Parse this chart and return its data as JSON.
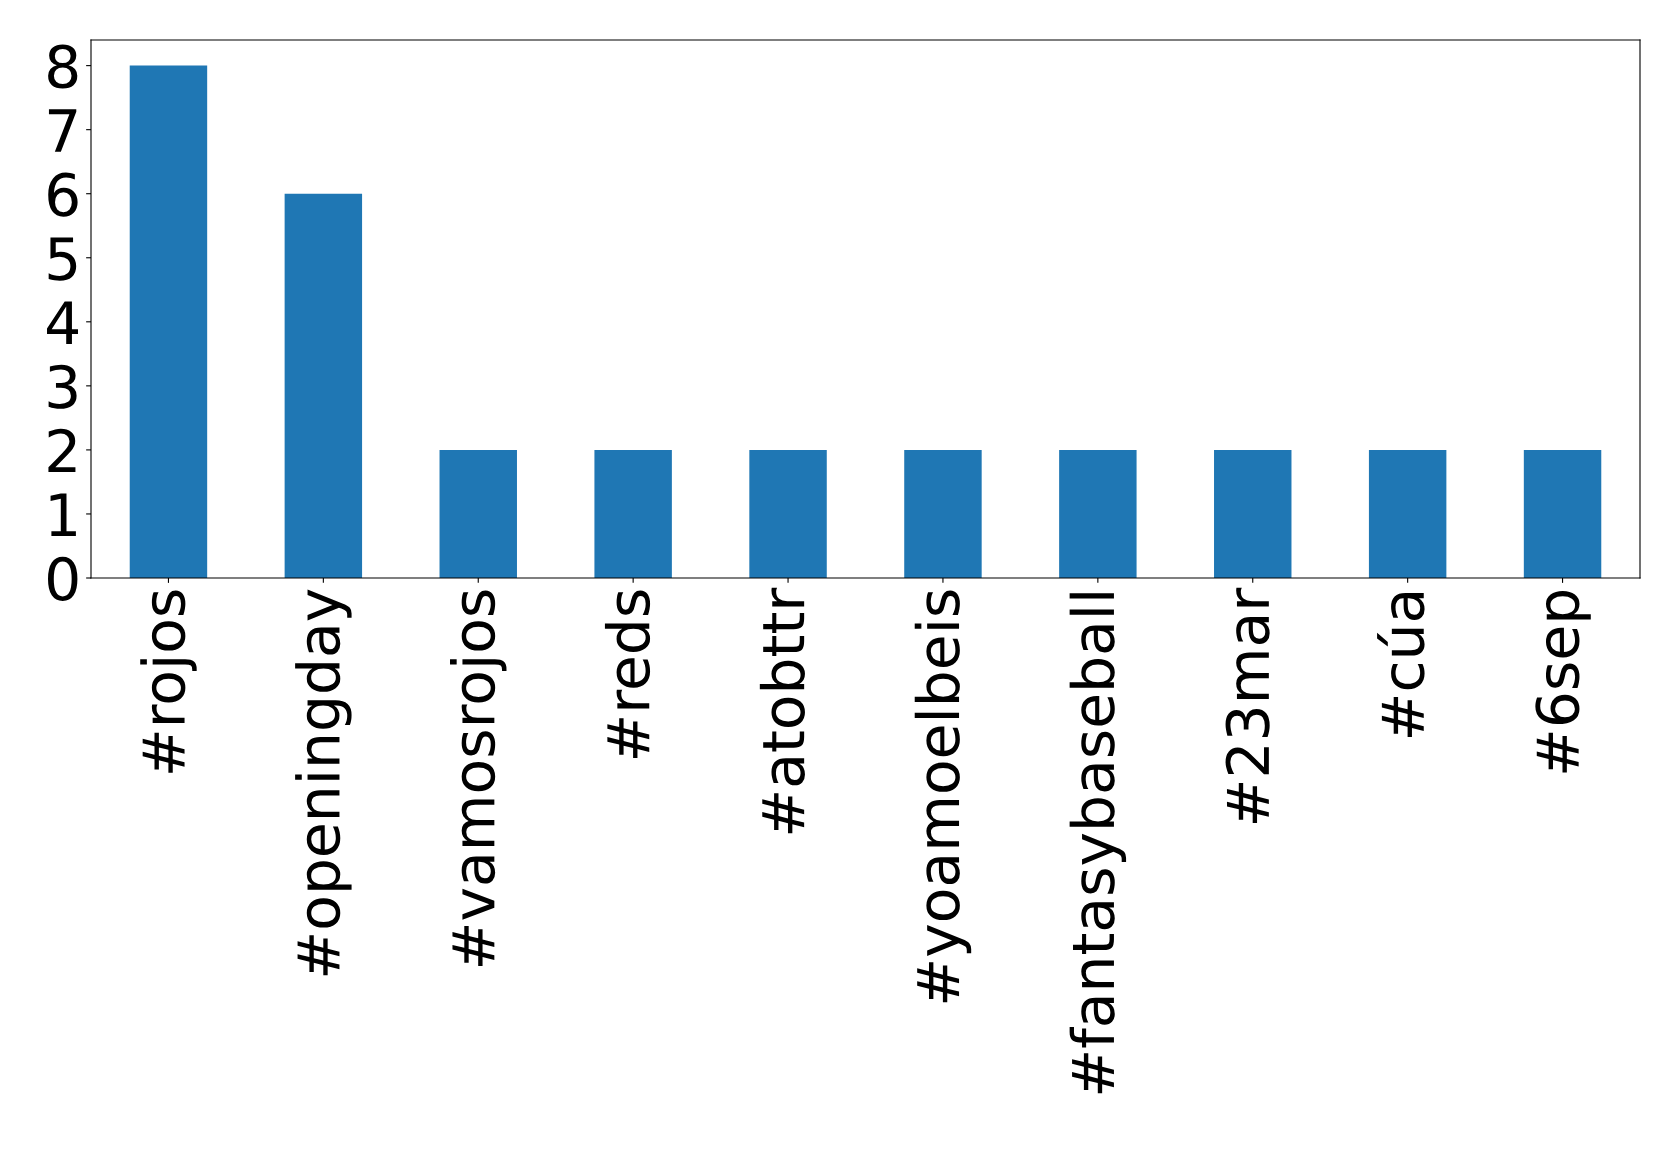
{
  "chart_data": {
    "type": "bar",
    "categories": [
      "#rojos",
      "#openingday",
      "#vamosrojos",
      "#reds",
      "#atobttr",
      "#yoamoelbeis",
      "#fantasybaseball",
      "#23mar",
      "#cúa",
      "#6sep"
    ],
    "values": [
      8,
      6,
      2,
      2,
      2,
      2,
      2,
      2,
      2,
      2
    ],
    "color": "#1f77b4",
    "ylim": [
      0,
      8.4
    ],
    "yticks": [
      0,
      1,
      2,
      3,
      4,
      5,
      6,
      7,
      8
    ],
    "grid": false,
    "legend": false
  }
}
